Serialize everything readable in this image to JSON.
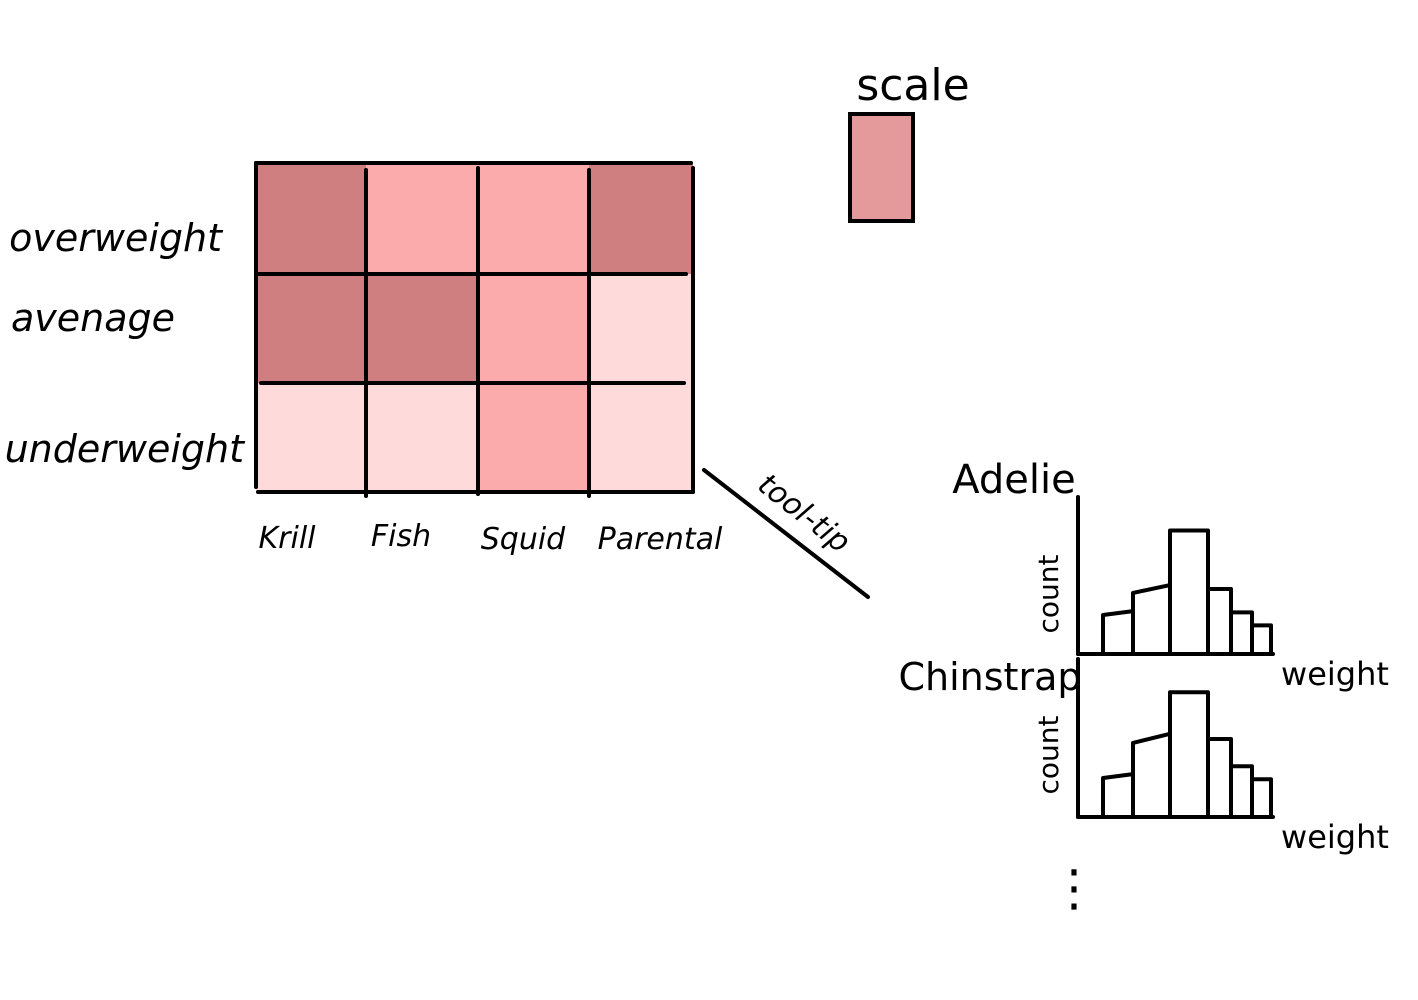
{
  "heatmap": {
    "rows": [
      "overweight",
      "avenage",
      "underweight"
    ],
    "columns": [
      "Krill",
      "Fish",
      "Squid",
      "Parental"
    ],
    "levels": [
      [
        "dark",
        "medium",
        "medium",
        "dark"
      ],
      [
        "dark",
        "dark",
        "medium",
        "light"
      ],
      [
        "light",
        "light",
        "medium",
        "light"
      ]
    ],
    "colors": {
      "dark": "#d07f80",
      "medium": "#fcabac",
      "light": "#fedadb",
      "scale": "#e49a9b"
    }
  },
  "scale": {
    "label": "scale"
  },
  "tooltip": {
    "label": "tool-tip"
  },
  "histograms": [
    {
      "title": "Adelie",
      "ylabel": "count",
      "xlabel": "weight",
      "bars": [
        {
          "left": 0.3,
          "right": 0.33
        },
        {
          "left": 0.47,
          "right": 0.53
        },
        {
          "left": 0.95,
          "right": 0.95
        },
        {
          "left": 0.5,
          "right": 0.5
        },
        {
          "left": 0.32,
          "right": 0.32
        },
        {
          "left": 0.22,
          "right": 0.22
        }
      ]
    },
    {
      "title": "Chinstrap",
      "ylabel": "count",
      "xlabel": "weight",
      "bars": [
        {
          "left": 0.3,
          "right": 0.33
        },
        {
          "left": 0.57,
          "right": 0.64
        },
        {
          "left": 0.96,
          "right": 0.96
        },
        {
          "left": 0.6,
          "right": 0.6
        },
        {
          "left": 0.39,
          "right": 0.39
        },
        {
          "left": 0.29,
          "right": 0.29
        }
      ]
    }
  ],
  "continuation": {
    "glyph": "⋮"
  }
}
